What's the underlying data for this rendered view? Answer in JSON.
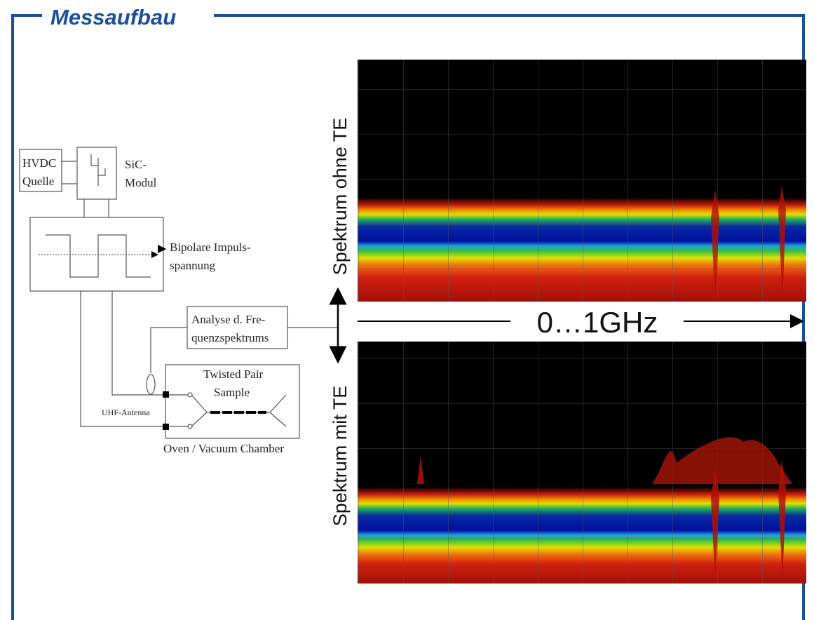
{
  "title": "Messaufbau",
  "diagram": {
    "hvdc": [
      "HVDC",
      "Quelle"
    ],
    "sic": [
      "SiC-",
      "Modul"
    ],
    "pulse": [
      "Bipolare Impuls-",
      "spannung"
    ],
    "analysis": [
      "Analyse d. Fre-",
      "quenzspektrums"
    ],
    "sample": [
      "Twisted Pair",
      "Sample"
    ],
    "antenna": "UHF-Antenna",
    "chamber": "Oven / Vacuum Chamber"
  },
  "spectra": {
    "top_label": "Spektrum ohne TE",
    "bottom_label": "Spektrum mit TE",
    "range_label": "0…1GHz"
  }
}
